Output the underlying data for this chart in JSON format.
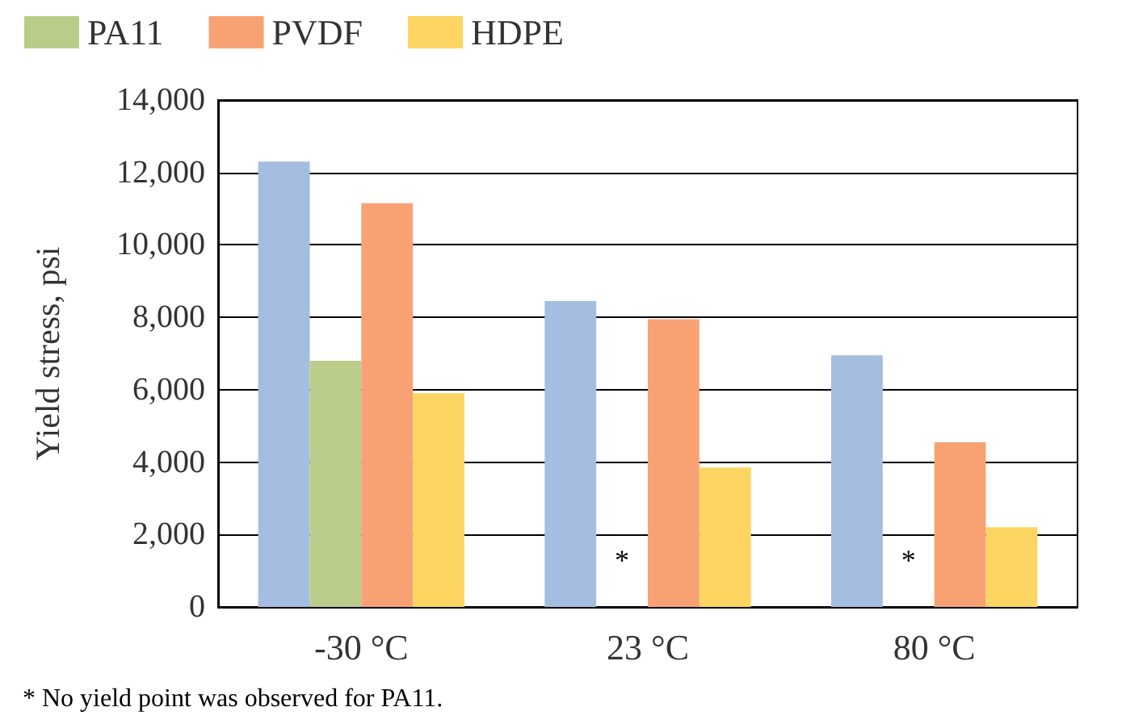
{
  "chart_data": {
    "type": "bar",
    "ylabel": "Yield stress, psi",
    "categories": [
      "-30 °C",
      "23 °C",
      "80 °C"
    ],
    "series": [
      {
        "color": "#a4bde0",
        "values": [
          12300,
          8450,
          6950
        ]
      },
      {
        "name": "PA11",
        "color": "#b9cc8a",
        "values": [
          6800,
          null,
          null
        ]
      },
      {
        "name": "PVDF",
        "color": "#f8a274",
        "values": [
          11150,
          7950,
          4550
        ]
      },
      {
        "name": "HDPE",
        "color": "#fcd562",
        "values": [
          5900,
          3850,
          2200
        ]
      }
    ],
    "ylim": [
      0,
      14000
    ],
    "yticks": [
      0,
      {
        "value": 2000,
        "label": "2,000"
      },
      {
        "value": 4000,
        "label": "4,000"
      },
      {
        "value": 6000,
        "label": "6,000"
      },
      {
        "value": 8000,
        "label": "8,000"
      },
      {
        "value": 10000,
        "label": "10,000"
      },
      {
        "value": 12000,
        "label": "12,000"
      },
      {
        "value": 14000,
        "label": "14,000"
      }
    ],
    "grid": "y",
    "legend": "top",
    "annotations": [
      {
        "text": "*",
        "x": "23 °C",
        "y": 1300
      },
      {
        "text": "*",
        "x": "80 °C",
        "y": 1300
      },
      "* No yield point was observed for PA11."
    ]
  }
}
